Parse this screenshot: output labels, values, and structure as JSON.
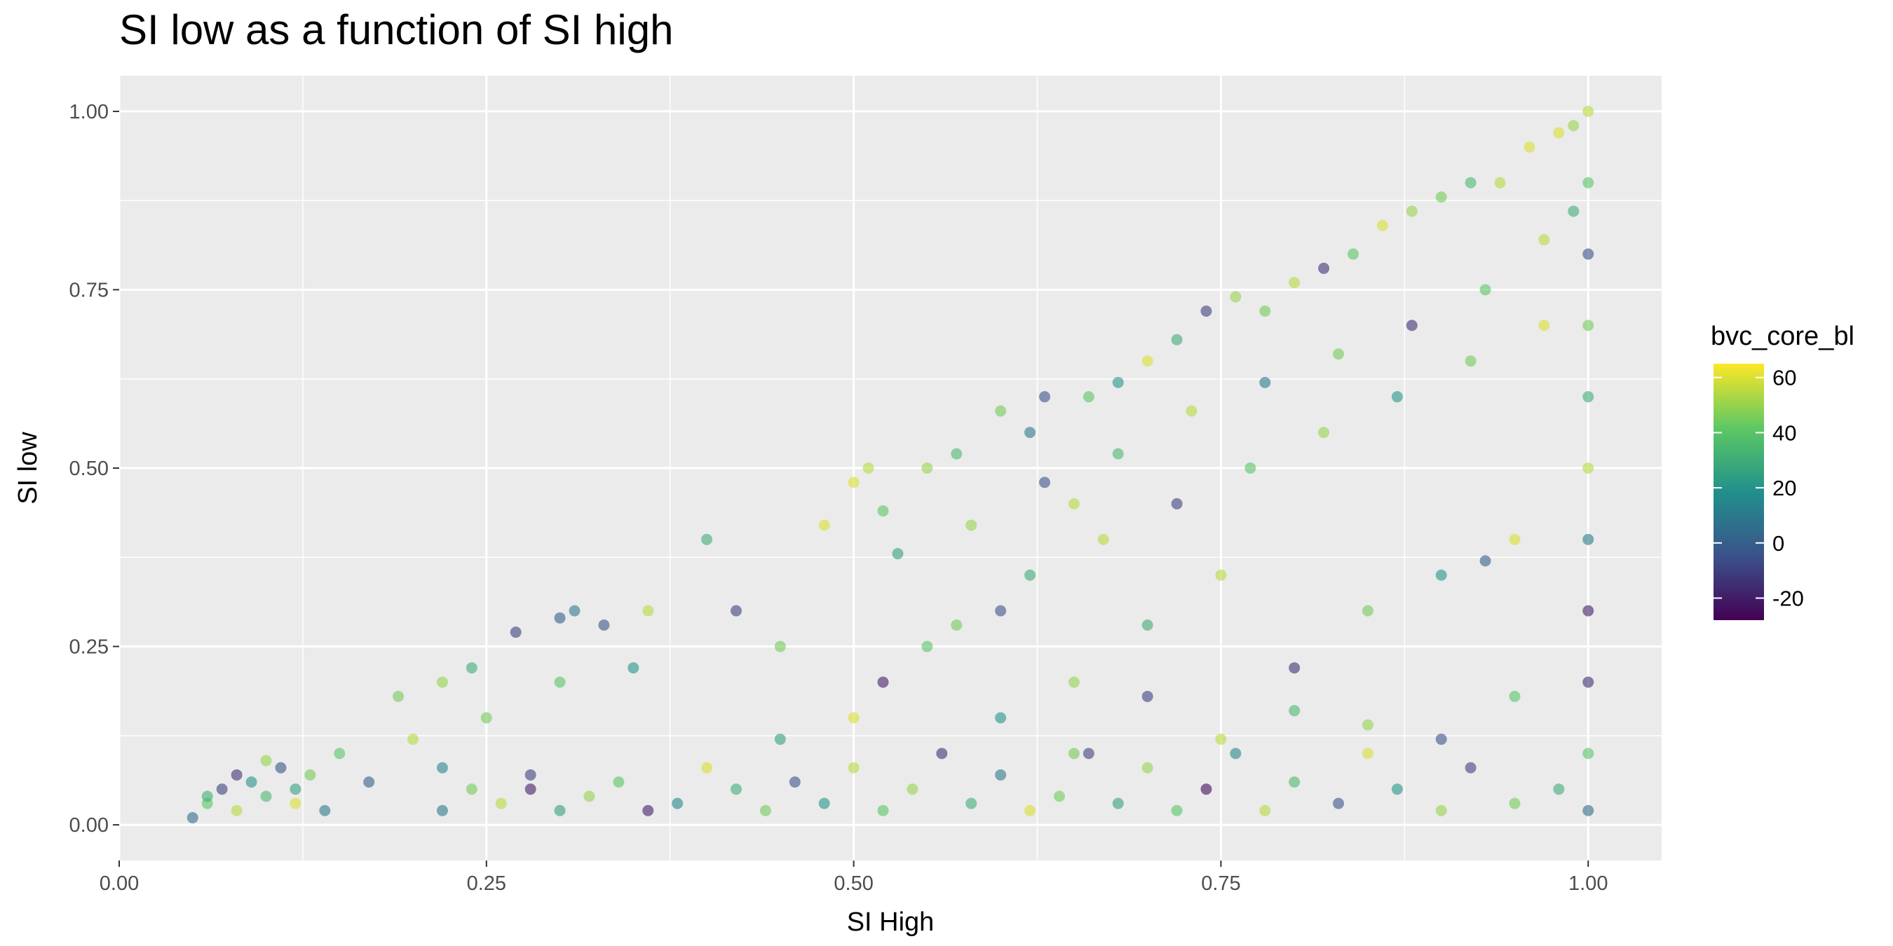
{
  "chart_data": {
    "type": "scatter",
    "title": "SI low as a function of SI high",
    "xlabel": "SI High",
    "ylabel": "SI low",
    "xlim": [
      0.0,
      1.05
    ],
    "ylim": [
      -0.05,
      1.05
    ],
    "x_ticks": [
      "0.00",
      "0.25",
      "0.50",
      "0.75",
      "1.00"
    ],
    "y_ticks": [
      "0.00",
      "0.25",
      "0.50",
      "0.75",
      "1.00"
    ],
    "grid": true,
    "legend": {
      "title": "bvc_core_bl",
      "position": "right",
      "type": "continuous-colorbar",
      "range": [
        -28,
        65
      ],
      "ticks": [
        "60",
        "40",
        "20",
        "0",
        "-20"
      ],
      "palette": [
        "#440154",
        "#3b528b",
        "#21908c",
        "#5dc863",
        "#fde725"
      ]
    },
    "points": [
      [
        0.05,
        0.01,
        5
      ],
      [
        0.06,
        0.03,
        40
      ],
      [
        0.07,
        0.05,
        -10
      ],
      [
        0.08,
        0.02,
        55
      ],
      [
        0.09,
        0.06,
        20
      ],
      [
        0.1,
        0.04,
        35
      ],
      [
        0.11,
        0.08,
        -5
      ],
      [
        0.12,
        0.03,
        60
      ],
      [
        0.13,
        0.07,
        45
      ],
      [
        0.14,
        0.02,
        10
      ],
      [
        0.06,
        0.04,
        30
      ],
      [
        0.08,
        0.07,
        -15
      ],
      [
        0.1,
        0.09,
        50
      ],
      [
        0.12,
        0.05,
        25
      ],
      [
        0.15,
        0.1,
        40
      ],
      [
        0.17,
        0.06,
        0
      ],
      [
        0.2,
        0.12,
        55
      ],
      [
        0.22,
        0.08,
        15
      ],
      [
        0.25,
        0.15,
        45
      ],
      [
        0.28,
        0.05,
        -20
      ],
      [
        0.3,
        0.29,
        0
      ],
      [
        0.31,
        0.3,
        10
      ],
      [
        0.33,
        0.28,
        -5
      ],
      [
        0.3,
        0.2,
        40
      ],
      [
        0.27,
        0.27,
        -10
      ],
      [
        0.24,
        0.22,
        30
      ],
      [
        0.22,
        0.2,
        50
      ],
      [
        0.19,
        0.18,
        45
      ],
      [
        0.35,
        0.22,
        20
      ],
      [
        0.36,
        0.3,
        55
      ],
      [
        0.4,
        0.4,
        30
      ],
      [
        0.42,
        0.3,
        -10
      ],
      [
        0.45,
        0.25,
        45
      ],
      [
        0.48,
        0.42,
        60
      ],
      [
        0.5,
        0.48,
        60
      ],
      [
        0.51,
        0.5,
        55
      ],
      [
        0.52,
        0.44,
        40
      ],
      [
        0.53,
        0.38,
        25
      ],
      [
        0.55,
        0.5,
        50
      ],
      [
        0.57,
        0.52,
        35
      ],
      [
        0.6,
        0.58,
        45
      ],
      [
        0.62,
        0.55,
        10
      ],
      [
        0.63,
        0.6,
        -5
      ],
      [
        0.65,
        0.45,
        55
      ],
      [
        0.66,
        0.6,
        40
      ],
      [
        0.68,
        0.62,
        20
      ],
      [
        0.7,
        0.65,
        60
      ],
      [
        0.72,
        0.68,
        30
      ],
      [
        0.74,
        0.72,
        -10
      ],
      [
        0.76,
        0.74,
        50
      ],
      [
        0.78,
        0.72,
        45
      ],
      [
        0.8,
        0.76,
        55
      ],
      [
        0.82,
        0.78,
        -15
      ],
      [
        0.84,
        0.8,
        40
      ],
      [
        0.86,
        0.84,
        60
      ],
      [
        0.88,
        0.86,
        50
      ],
      [
        0.9,
        0.88,
        45
      ],
      [
        0.92,
        0.9,
        35
      ],
      [
        0.94,
        0.9,
        55
      ],
      [
        0.96,
        0.95,
        60
      ],
      [
        0.98,
        0.97,
        60
      ],
      [
        0.99,
        0.98,
        50
      ],
      [
        1.0,
        1.0,
        55
      ],
      [
        1.0,
        0.9,
        40
      ],
      [
        1.0,
        0.8,
        -5
      ],
      [
        1.0,
        0.7,
        45
      ],
      [
        1.0,
        0.6,
        30
      ],
      [
        1.0,
        0.5,
        55
      ],
      [
        1.0,
        0.4,
        10
      ],
      [
        1.0,
        0.3,
        -20
      ],
      [
        1.0,
        0.2,
        -15
      ],
      [
        1.0,
        0.1,
        40
      ],
      [
        1.0,
        0.02,
        5
      ],
      [
        0.98,
        0.05,
        30
      ],
      [
        0.95,
        0.03,
        45
      ],
      [
        0.92,
        0.08,
        -10
      ],
      [
        0.9,
        0.02,
        50
      ],
      [
        0.87,
        0.05,
        20
      ],
      [
        0.85,
        0.1,
        60
      ],
      [
        0.83,
        0.03,
        -5
      ],
      [
        0.8,
        0.06,
        35
      ],
      [
        0.78,
        0.02,
        55
      ],
      [
        0.76,
        0.1,
        15
      ],
      [
        0.74,
        0.05,
        -25
      ],
      [
        0.72,
        0.02,
        40
      ],
      [
        0.7,
        0.08,
        50
      ],
      [
        0.68,
        0.03,
        25
      ],
      [
        0.66,
        0.1,
        -10
      ],
      [
        0.64,
        0.04,
        45
      ],
      [
        0.62,
        0.02,
        60
      ],
      [
        0.6,
        0.07,
        10
      ],
      [
        0.58,
        0.03,
        30
      ],
      [
        0.56,
        0.1,
        -15
      ],
      [
        0.54,
        0.05,
        50
      ],
      [
        0.52,
        0.02,
        40
      ],
      [
        0.5,
        0.08,
        55
      ],
      [
        0.48,
        0.03,
        20
      ],
      [
        0.46,
        0.06,
        -5
      ],
      [
        0.44,
        0.02,
        45
      ],
      [
        0.42,
        0.05,
        30
      ],
      [
        0.4,
        0.08,
        60
      ],
      [
        0.38,
        0.03,
        15
      ],
      [
        0.36,
        0.02,
        -20
      ],
      [
        0.34,
        0.06,
        40
      ],
      [
        0.32,
        0.04,
        50
      ],
      [
        0.3,
        0.02,
        25
      ],
      [
        0.28,
        0.07,
        -10
      ],
      [
        0.26,
        0.03,
        55
      ],
      [
        0.24,
        0.05,
        45
      ],
      [
        0.22,
        0.02,
        10
      ],
      [
        0.55,
        0.25,
        40
      ],
      [
        0.6,
        0.3,
        -5
      ],
      [
        0.65,
        0.2,
        50
      ],
      [
        0.7,
        0.28,
        30
      ],
      [
        0.75,
        0.35,
        55
      ],
      [
        0.8,
        0.22,
        -15
      ],
      [
        0.85,
        0.3,
        45
      ],
      [
        0.9,
        0.35,
        20
      ],
      [
        0.93,
        0.37,
        0
      ],
      [
        0.95,
        0.4,
        60
      ],
      [
        0.6,
        0.15,
        20
      ],
      [
        0.65,
        0.1,
        45
      ],
      [
        0.7,
        0.18,
        -10
      ],
      [
        0.75,
        0.12,
        55
      ],
      [
        0.8,
        0.16,
        35
      ],
      [
        0.85,
        0.14,
        50
      ],
      [
        0.9,
        0.12,
        -5
      ],
      [
        0.95,
        0.18,
        40
      ],
      [
        0.5,
        0.15,
        60
      ],
      [
        0.45,
        0.12,
        25
      ],
      [
        0.52,
        0.2,
        -20
      ],
      [
        0.57,
        0.28,
        45
      ],
      [
        0.62,
        0.35,
        30
      ],
      [
        0.67,
        0.4,
        55
      ],
      [
        0.72,
        0.45,
        -10
      ],
      [
        0.77,
        0.5,
        40
      ],
      [
        0.82,
        0.55,
        50
      ],
      [
        0.87,
        0.6,
        20
      ],
      [
        0.92,
        0.65,
        45
      ],
      [
        0.97,
        0.7,
        60
      ],
      [
        0.58,
        0.42,
        50
      ],
      [
        0.63,
        0.48,
        -5
      ],
      [
        0.68,
        0.52,
        35
      ],
      [
        0.73,
        0.58,
        55
      ],
      [
        0.78,
        0.62,
        10
      ],
      [
        0.83,
        0.66,
        45
      ],
      [
        0.88,
        0.7,
        -15
      ],
      [
        0.93,
        0.75,
        40
      ],
      [
        0.97,
        0.82,
        55
      ],
      [
        0.99,
        0.86,
        30
      ]
    ]
  }
}
